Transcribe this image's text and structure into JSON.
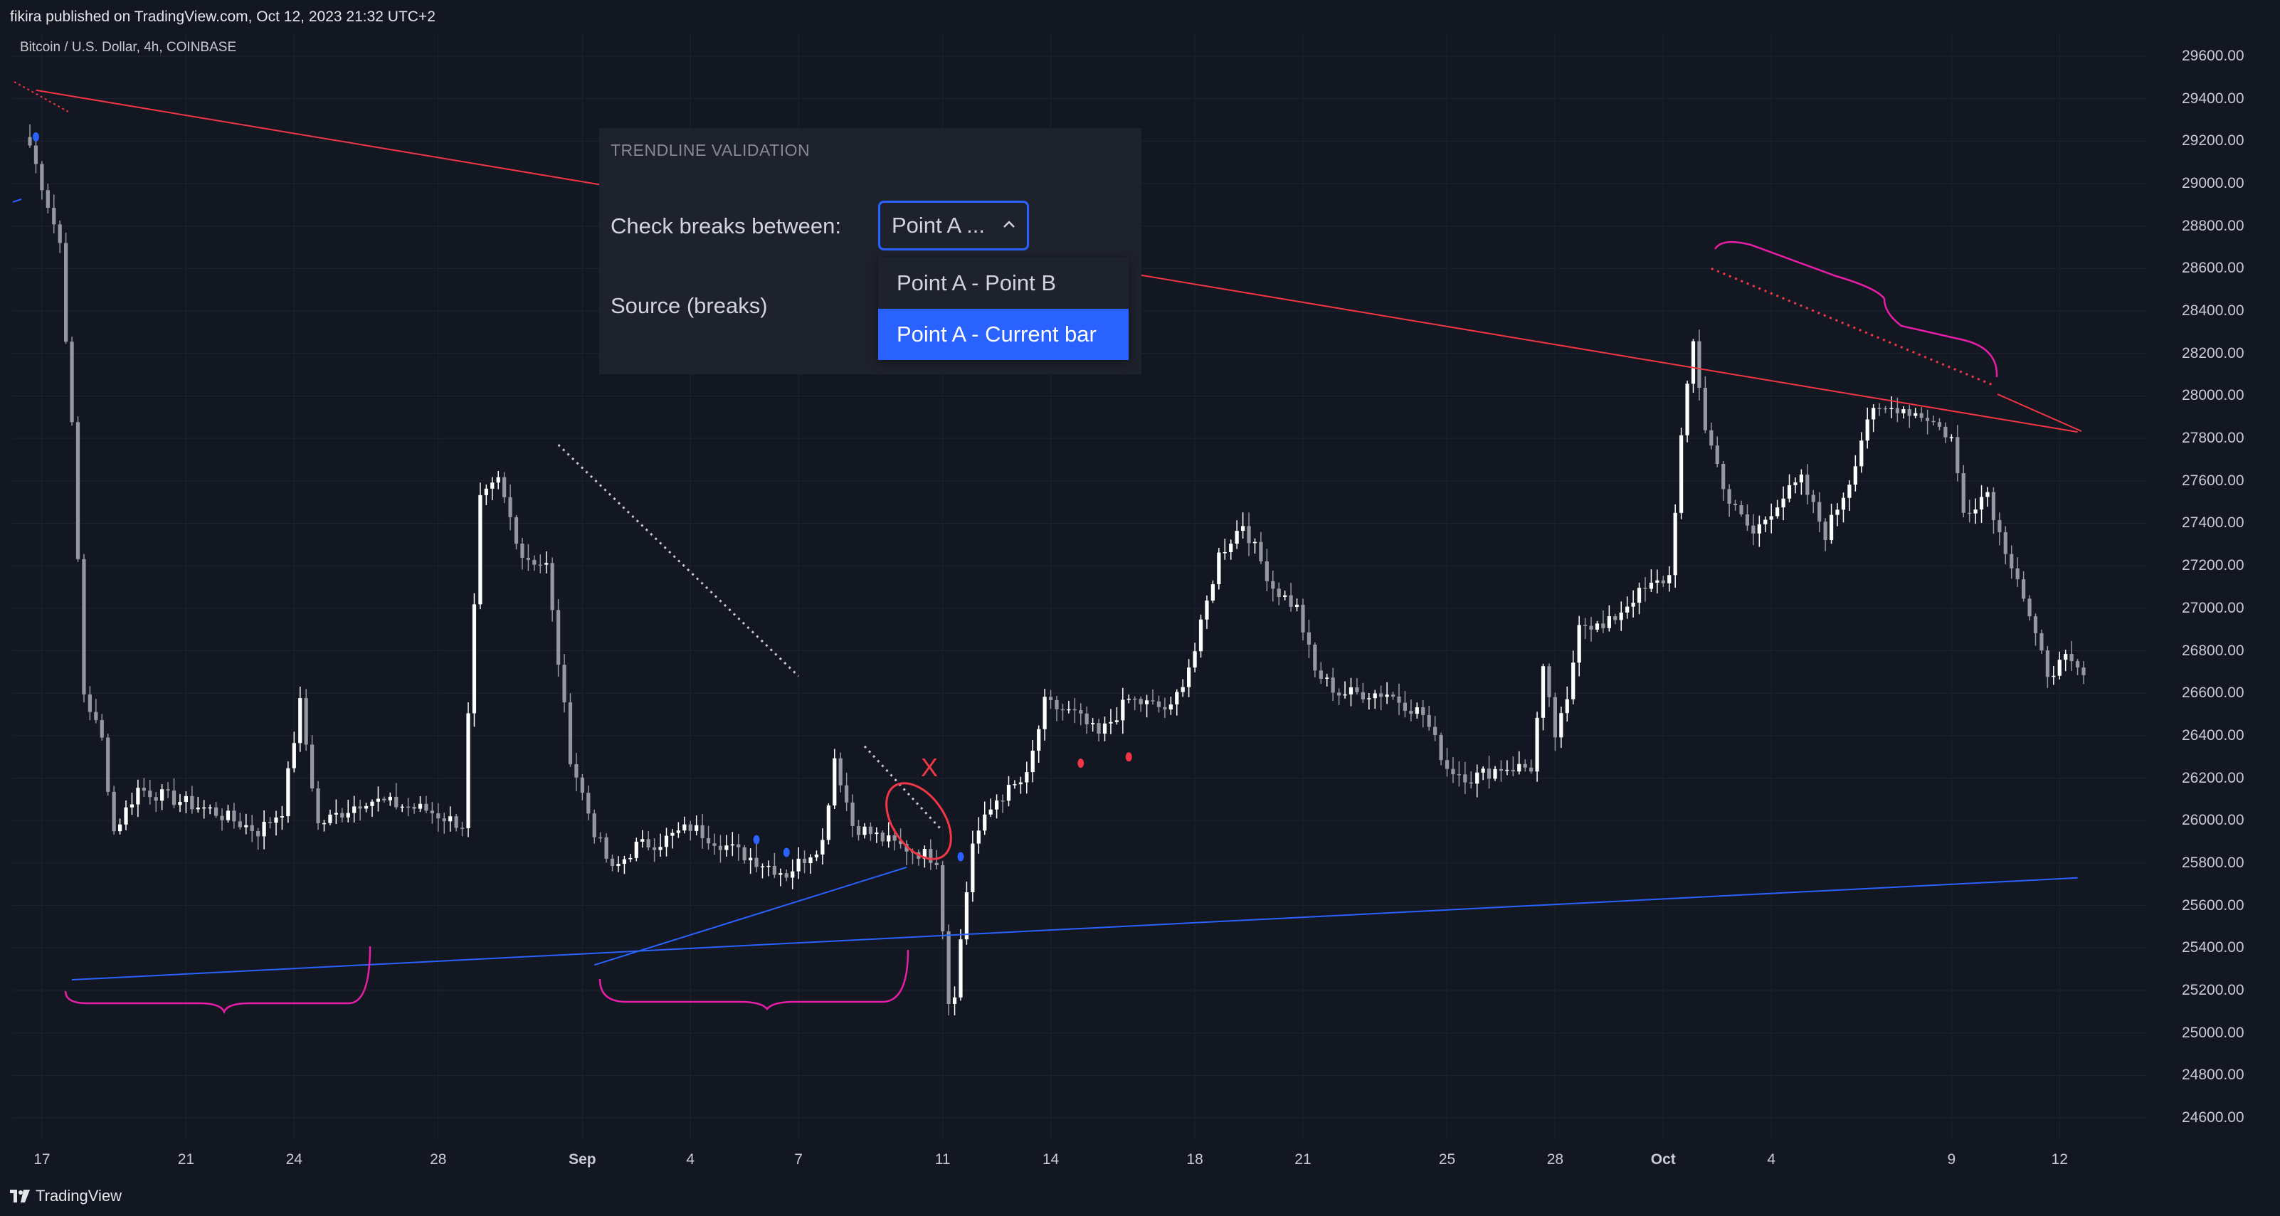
{
  "header": {
    "publisher_line": "fikira published on TradingView.com, Oct 12, 2023 21:32 UTC+2"
  },
  "symbol": {
    "title": "Bitcoin / U.S. Dollar, 4h, COINBASE"
  },
  "footer": {
    "logo_text": "TradingView"
  },
  "annotation": {
    "mark": "X"
  },
  "panel": {
    "title": "TRENDLINE VALIDATION",
    "check_label": "Check breaks between:",
    "source_label": "Source (breaks)",
    "select_value": "Point A ...",
    "options": [
      {
        "label": "Point A - Point B",
        "selected": false
      },
      {
        "label": "Point A - Current bar",
        "selected": true
      }
    ]
  },
  "colors": {
    "background": "#131722",
    "accent": "#2962ff",
    "up_candle": "#ffffff",
    "down_candle": "#9598a1",
    "resistance_line": "#f23645",
    "support_line": "#2962ff",
    "brace": "#e91ea8"
  },
  "chart_data": {
    "type": "candlestick",
    "title": "Bitcoin / U.S. Dollar, 4h, COINBASE",
    "ylim": [
      24500,
      29700
    ],
    "y_ticks": [
      "29600.00",
      "29400.00",
      "29200.00",
      "29000.00",
      "28800.00",
      "28600.00",
      "28400.00",
      "28200.00",
      "28000.00",
      "27800.00",
      "27600.00",
      "27400.00",
      "27200.00",
      "27000.00",
      "26800.00",
      "26600.00",
      "26400.00",
      "26200.00",
      "26000.00",
      "25800.00",
      "25600.00",
      "25400.00",
      "25200.00",
      "25000.00",
      "24800.00",
      "24600.00"
    ],
    "x_ticks": [
      {
        "label": "17",
        "bar": 2,
        "bold": false
      },
      {
        "label": "21",
        "bar": 26,
        "bold": false
      },
      {
        "label": "24",
        "bar": 44,
        "bold": false
      },
      {
        "label": "28",
        "bar": 68,
        "bold": false
      },
      {
        "label": "Sep",
        "bar": 92,
        "bold": true
      },
      {
        "label": "4",
        "bar": 110,
        "bold": false
      },
      {
        "label": "7",
        "bar": 128,
        "bold": false
      },
      {
        "label": "11",
        "bar": 152,
        "bold": false
      },
      {
        "label": "14",
        "bar": 170,
        "bold": false
      },
      {
        "label": "18",
        "bar": 194,
        "bold": false
      },
      {
        "label": "21",
        "bar": 212,
        "bold": false
      },
      {
        "label": "25",
        "bar": 236,
        "bold": false
      },
      {
        "label": "28",
        "bar": 254,
        "bold": false
      },
      {
        "label": "Oct",
        "bar": 272,
        "bold": true
      },
      {
        "label": "4",
        "bar": 290,
        "bold": false
      },
      {
        "label": "9",
        "bar": 320,
        "bold": false
      },
      {
        "label": "12",
        "bar": 338,
        "bold": false
      }
    ],
    "bar_count": 343,
    "price_path": [
      [
        0,
        29180
      ],
      [
        5,
        28720
      ],
      [
        7,
        27850
      ],
      [
        9,
        26600
      ],
      [
        12,
        26380
      ],
      [
        14,
        25950
      ],
      [
        18,
        26150
      ],
      [
        24,
        26100
      ],
      [
        30,
        26050
      ],
      [
        38,
        25950
      ],
      [
        42,
        26050
      ],
      [
        45,
        26550
      ],
      [
        48,
        25980
      ],
      [
        56,
        26100
      ],
      [
        66,
        26050
      ],
      [
        72,
        25980
      ],
      [
        75,
        27500
      ],
      [
        78,
        27600
      ],
      [
        82,
        27250
      ],
      [
        86,
        27200
      ],
      [
        90,
        26300
      ],
      [
        94,
        25950
      ],
      [
        97,
        25760
      ],
      [
        101,
        25880
      ],
      [
        105,
        25900
      ],
      [
        110,
        25970
      ],
      [
        118,
        25850
      ],
      [
        126,
        25750
      ],
      [
        132,
        25900
      ],
      [
        134,
        26300
      ],
      [
        137,
        25980
      ],
      [
        143,
        25900
      ],
      [
        148,
        25850
      ],
      [
        151,
        25820
      ],
      [
        152,
        25500
      ],
      [
        153,
        25150
      ],
      [
        154,
        25200
      ],
      [
        157,
        25900
      ],
      [
        161,
        26100
      ],
      [
        166,
        26200
      ],
      [
        169,
        26550
      ],
      [
        174,
        26500
      ],
      [
        178,
        26400
      ],
      [
        183,
        26570
      ],
      [
        190,
        26520
      ],
      [
        194,
        26800
      ],
      [
        198,
        27250
      ],
      [
        202,
        27400
      ],
      [
        207,
        27100
      ],
      [
        211,
        27000
      ],
      [
        214,
        26700
      ],
      [
        218,
        26600
      ],
      [
        226,
        26600
      ],
      [
        232,
        26500
      ],
      [
        236,
        26250
      ],
      [
        240,
        26200
      ],
      [
        245,
        26250
      ],
      [
        250,
        26250
      ],
      [
        252,
        26700
      ],
      [
        254,
        26400
      ],
      [
        256,
        26550
      ],
      [
        258,
        26950
      ],
      [
        262,
        26900
      ],
      [
        267,
        27050
      ],
      [
        270,
        27100
      ],
      [
        273,
        27150
      ],
      [
        275,
        27800
      ],
      [
        277,
        28250
      ],
      [
        279,
        27850
      ],
      [
        283,
        27500
      ],
      [
        287,
        27350
      ],
      [
        291,
        27500
      ],
      [
        295,
        27600
      ],
      [
        299,
        27350
      ],
      [
        303,
        27600
      ],
      [
        306,
        27900
      ],
      [
        311,
        27950
      ],
      [
        316,
        27900
      ],
      [
        320,
        27800
      ],
      [
        322,
        27450
      ],
      [
        326,
        27550
      ],
      [
        328,
        27350
      ],
      [
        331,
        27150
      ],
      [
        334,
        26850
      ],
      [
        336,
        26700
      ],
      [
        339,
        26750
      ],
      [
        342,
        26680
      ]
    ],
    "series": [
      {
        "name": "",
        "type": "trendline",
        "color": "#f23645",
        "from": [
          1,
          29440
        ],
        "to": [
          341,
          27830
        ]
      },
      {
        "name": "",
        "type": "trendline",
        "color": "#2962ff",
        "from": [
          7,
          25250
        ],
        "to": [
          341,
          25730
        ]
      },
      {
        "name": "",
        "type": "trendline",
        "color": "#2962ff",
        "from": [
          94,
          25320
        ],
        "to": [
          146,
          25780
        ]
      },
      {
        "name": "",
        "type": "dotted",
        "color": "#c8cad0",
        "from": [
          88,
          27770
        ],
        "to": [
          128,
          26680
        ]
      },
      {
        "name": "",
        "type": "dotted",
        "color": "#c8cad0",
        "from": [
          139,
          26350
        ],
        "to": [
          152,
          25950
        ]
      },
      {
        "name": "",
        "type": "dotted",
        "color": "#f23645",
        "from": [
          280,
          28600
        ],
        "to": [
          327,
          28050
        ]
      }
    ],
    "markers": [
      {
        "bar": 1,
        "price": 29220,
        "color": "#2962ff"
      },
      {
        "bar": 121,
        "price": 25910,
        "color": "#2962ff"
      },
      {
        "bar": 126,
        "price": 25850,
        "color": "#2962ff"
      },
      {
        "bar": 155,
        "price": 25830,
        "color": "#2962ff"
      },
      {
        "bar": 175,
        "price": 26270,
        "color": "#f23645"
      },
      {
        "bar": 183,
        "price": 26300,
        "color": "#f23645"
      }
    ]
  }
}
